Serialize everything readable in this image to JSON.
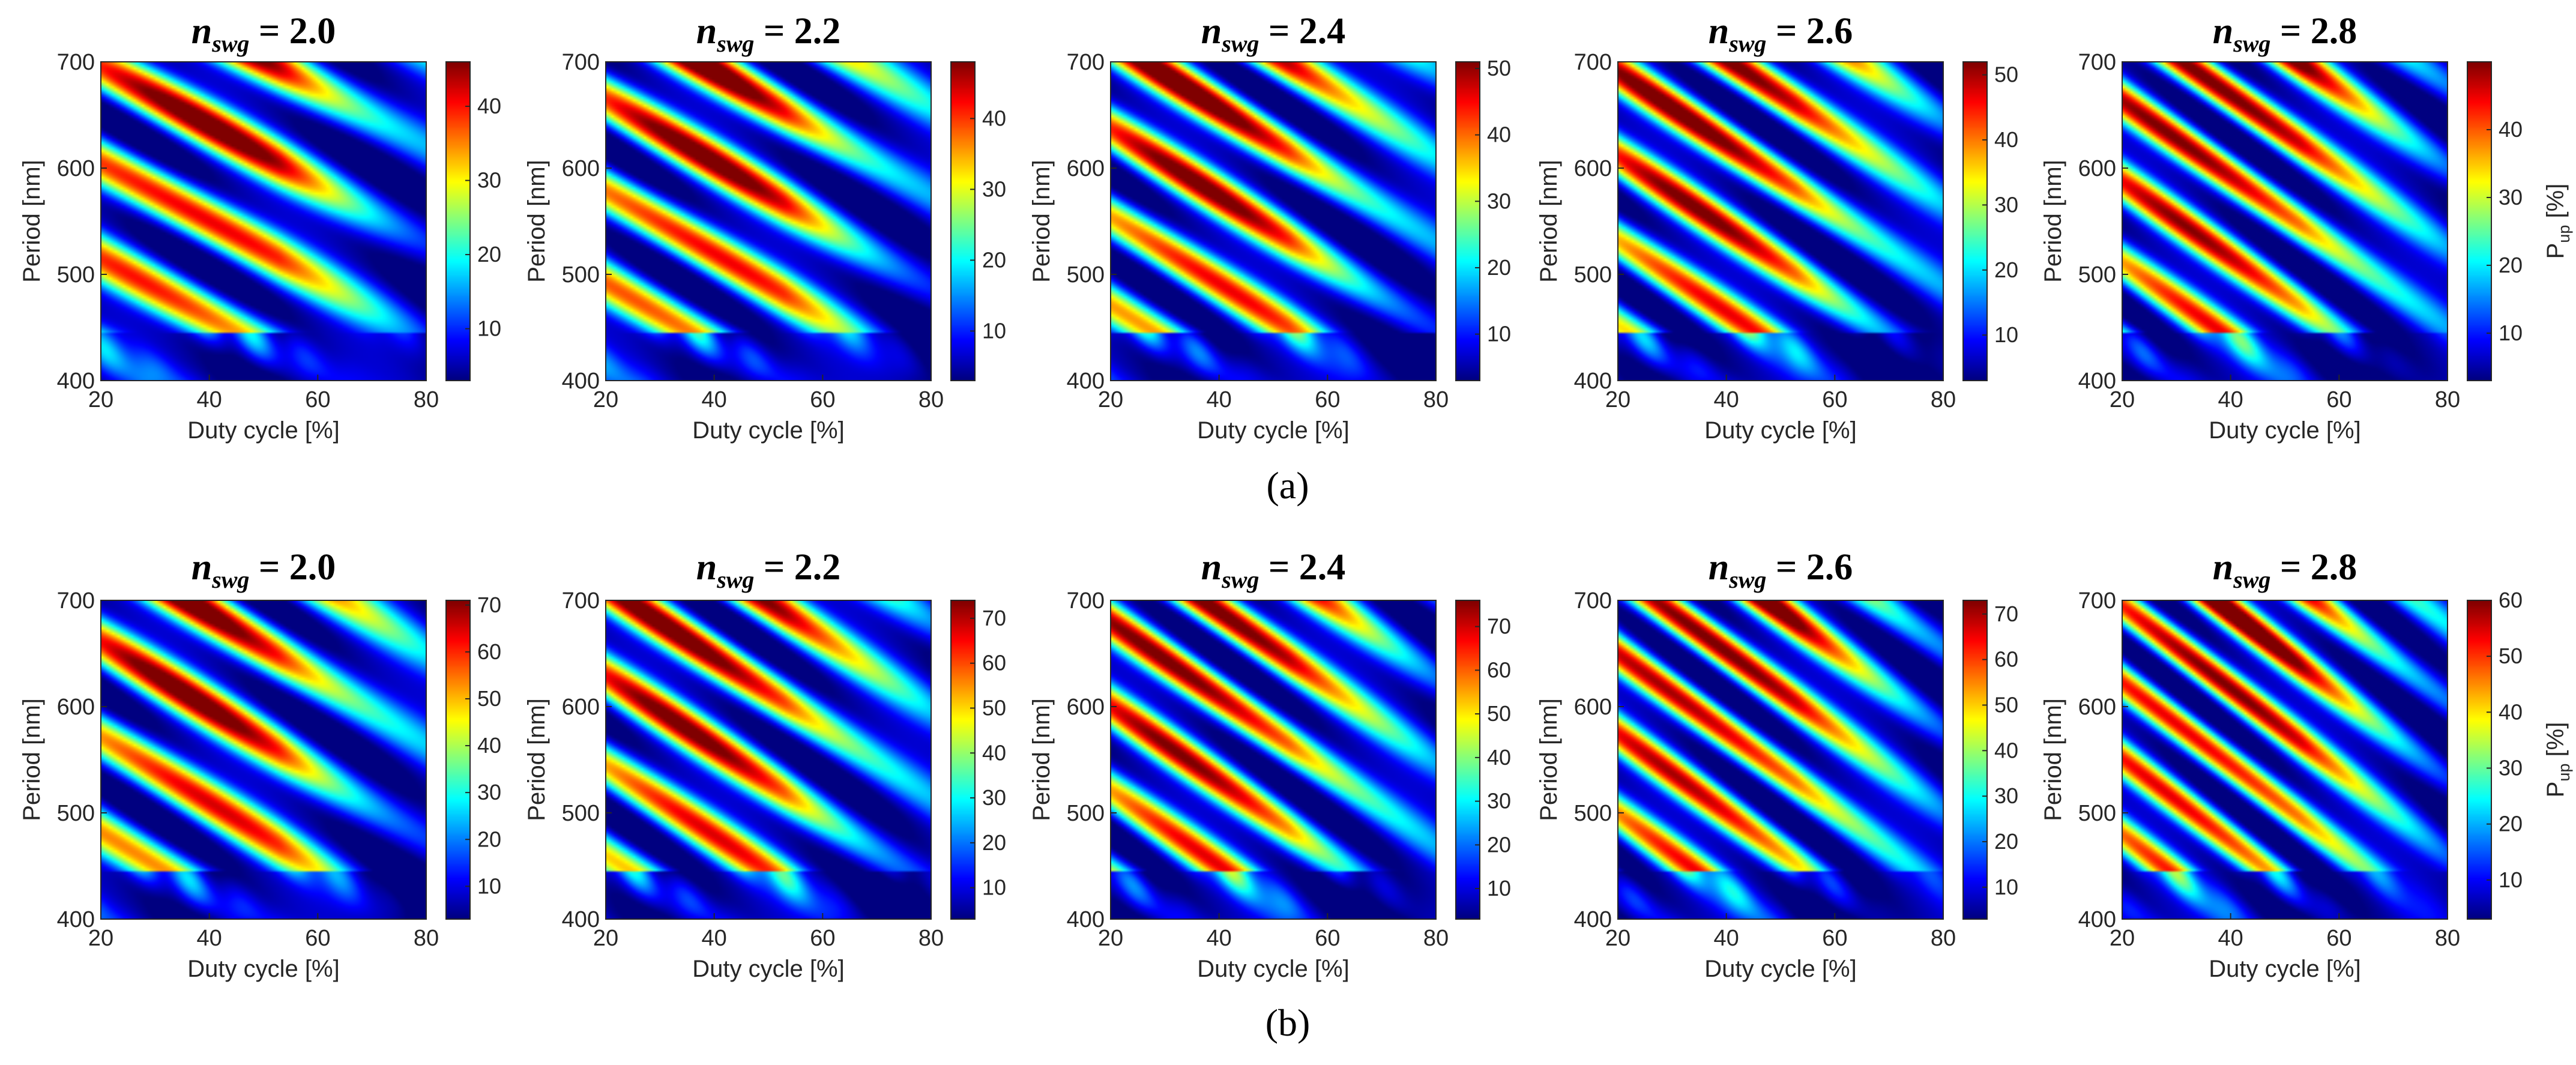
{
  "chart_data": {
    "type": "heatmap",
    "title_symbol": "n",
    "title_subscript": "swg",
    "xlabel": "Duty cycle [%]",
    "ylabel": "Period [nm]",
    "xlim": [
      20,
      80
    ],
    "ylim": [
      400,
      700
    ],
    "xticks": [
      "20",
      "40",
      "60",
      "80"
    ],
    "yticks": [
      "400",
      "500",
      "600",
      "700"
    ],
    "colormap": "jet",
    "colorbar_label_main": "P",
    "colorbar_label_sub": "up",
    "colorbar_label_unit": " [%]",
    "rows": [
      {
        "label": "(a)",
        "panels": [
          {
            "title_value": " = 2.0",
            "cbar_ticks": [
              "10",
              "20",
              "30",
              "40"
            ],
            "cbar_range": [
              3,
              46
            ]
          },
          {
            "title_value": " = 2.2",
            "cbar_ticks": [
              "10",
              "20",
              "30",
              "40"
            ],
            "cbar_range": [
              3,
              48
            ]
          },
          {
            "title_value": " = 2.4",
            "cbar_ticks": [
              "10",
              "20",
              "30",
              "40",
              "50"
            ],
            "cbar_range": [
              3,
              51
            ]
          },
          {
            "title_value": " = 2.6",
            "cbar_ticks": [
              "10",
              "20",
              "30",
              "40",
              "50"
            ],
            "cbar_range": [
              3,
              52
            ]
          },
          {
            "title_value": " = 2.8",
            "cbar_ticks": [
              "10",
              "20",
              "30",
              "40"
            ],
            "cbar_range": [
              3,
              50
            ]
          }
        ]
      },
      {
        "label": "(b)",
        "panels": [
          {
            "title_value": " = 2.0",
            "cbar_ticks": [
              "10",
              "20",
              "30",
              "40",
              "50",
              "60",
              "70"
            ],
            "cbar_range": [
              3,
              71
            ]
          },
          {
            "title_value": " = 2.2",
            "cbar_ticks": [
              "10",
              "20",
              "30",
              "40",
              "50",
              "60",
              "70"
            ],
            "cbar_range": [
              3,
              74
            ]
          },
          {
            "title_value": " = 2.4",
            "cbar_ticks": [
              "10",
              "20",
              "30",
              "40",
              "50",
              "60",
              "70"
            ],
            "cbar_range": [
              3,
              76
            ]
          },
          {
            "title_value": " = 2.6",
            "cbar_ticks": [
              "10",
              "20",
              "30",
              "40",
              "50",
              "60",
              "70"
            ],
            "cbar_range": [
              3,
              73
            ]
          },
          {
            "title_value": " = 2.8",
            "cbar_ticks": [
              "10",
              "20",
              "30",
              "40",
              "50",
              "60"
            ],
            "cbar_range": [
              3,
              60
            ]
          }
        ]
      }
    ]
  }
}
